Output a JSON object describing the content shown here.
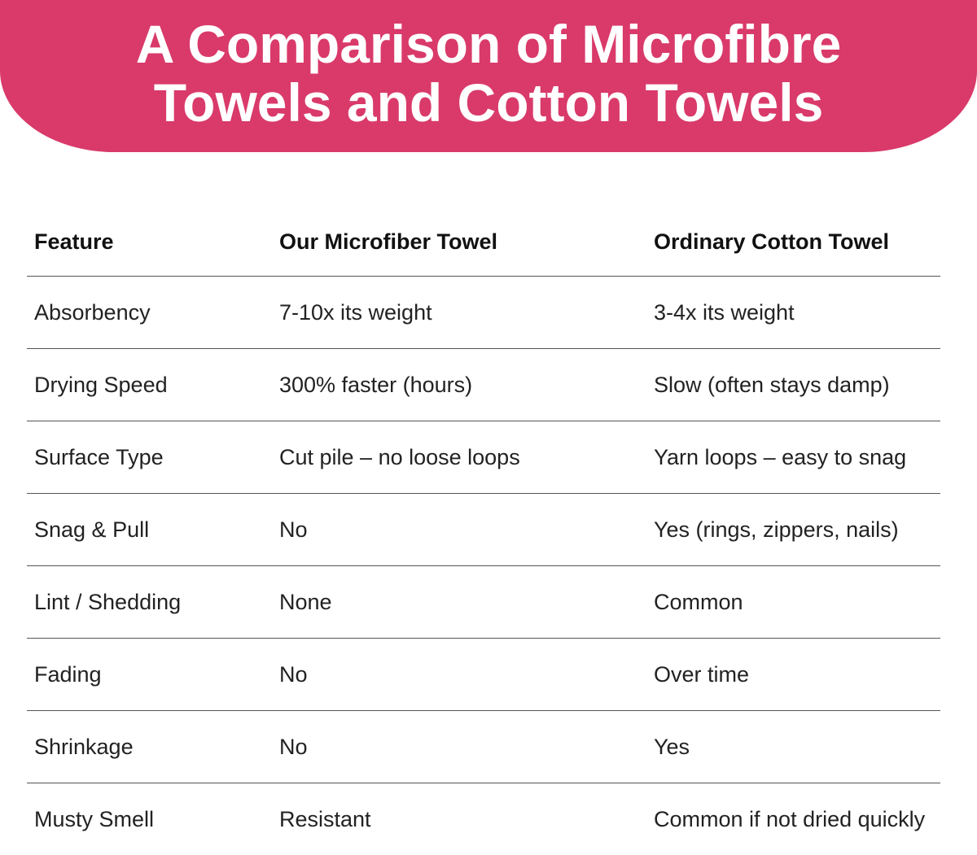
{
  "header": {
    "title_lines": [
      "A Comparison of Microfibre",
      "Towels and Cotton Towels"
    ]
  },
  "table": {
    "columns": [
      "Feature",
      "Our Microfiber Towel",
      "Ordinary Cotton Towel"
    ],
    "rows": [
      [
        "Absorbency",
        "7-10x its weight",
        "3-4x its weight"
      ],
      [
        "Drying Speed",
        "300% faster (hours)",
        "Slow (often stays damp)"
      ],
      [
        "Surface Type",
        "Cut pile – no loose loops",
        "Yarn loops – easy to snag"
      ],
      [
        "Snag & Pull",
        "No",
        "Yes (rings, zippers, nails)"
      ],
      [
        "Lint / Shedding",
        "None",
        "Common"
      ],
      [
        "Fading",
        "No",
        "Over time"
      ],
      [
        "Shrinkage",
        "No",
        "Yes"
      ],
      [
        "Musty Smell",
        "Resistant",
        "Common if not dried quickly"
      ]
    ]
  }
}
